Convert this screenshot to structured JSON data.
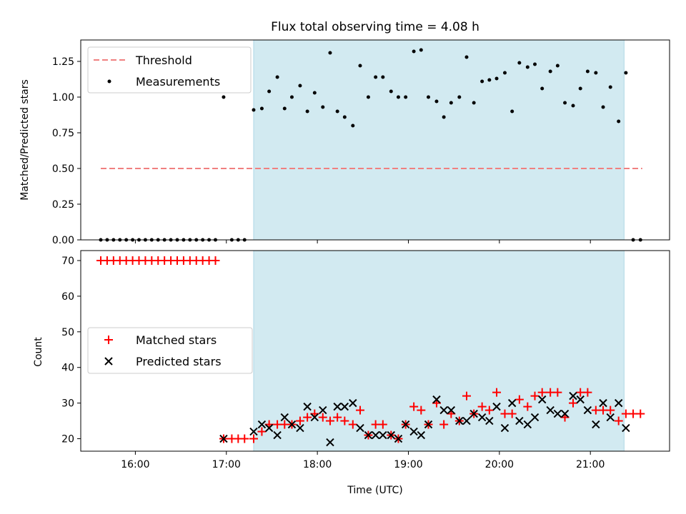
{
  "title": "Flux total observing time = 4.08 h",
  "colors": {
    "threshold": "#f08080",
    "measurement": "#000000",
    "matched": "#ff0000",
    "predicted": "#000000",
    "span": "#add8e6"
  },
  "chart_data": [
    {
      "type": "scatter",
      "ylabel": "Matched/Predicted stars",
      "ylim": [
        0,
        1.4
      ],
      "yticks": [
        "0.00",
        "0.25",
        "0.50",
        "0.75",
        "1.00",
        "1.25"
      ],
      "xlim": [
        15.4,
        21.87
      ],
      "highlight_span": [
        17.3,
        21.37
      ],
      "legend": {
        "position": "top-left",
        "entries": [
          "Threshold",
          "Measurements"
        ]
      },
      "series": [
        {
          "name": "Threshold",
          "style": "dashed-line",
          "x": [
            15.62,
            21.57
          ],
          "y": [
            0.5,
            0.5
          ]
        },
        {
          "name": "Measurements",
          "style": "dots",
          "x": [
            15.62,
            15.69,
            15.76,
            15.83,
            15.9,
            15.97,
            16.04,
            16.11,
            16.18,
            16.25,
            16.32,
            16.39,
            16.46,
            16.53,
            16.6,
            16.67,
            16.74,
            16.81,
            16.88,
            16.97,
            17.06,
            17.13,
            17.2,
            17.3,
            17.39,
            17.47,
            17.56,
            17.64,
            17.72,
            17.81,
            17.89,
            17.97,
            18.06,
            18.14,
            18.22,
            18.3,
            18.39,
            18.47,
            18.56,
            18.64,
            18.72,
            18.81,
            18.89,
            18.97,
            19.06,
            19.14,
            19.22,
            19.31,
            19.39,
            19.47,
            19.56,
            19.64,
            19.72,
            19.81,
            19.89,
            19.97,
            20.06,
            20.14,
            20.22,
            20.31,
            20.39,
            20.47,
            20.56,
            20.64,
            20.72,
            20.81,
            20.89,
            20.97,
            21.06,
            21.14,
            21.22,
            21.31,
            21.39,
            21.47,
            21.55
          ],
          "y": [
            0,
            0,
            0,
            0,
            0,
            0,
            0,
            0,
            0,
            0,
            0,
            0,
            0,
            0,
            0,
            0,
            0,
            0,
            0,
            1.0,
            0,
            0,
            0,
            0.91,
            0.92,
            1.04,
            1.14,
            0.92,
            1.0,
            1.08,
            0.9,
            1.03,
            0.93,
            1.31,
            0.9,
            0.86,
            0.8,
            1.22,
            1.0,
            1.14,
            1.14,
            1.04,
            1.0,
            1.0,
            1.32,
            1.33,
            1.0,
            0.97,
            0.86,
            0.96,
            1.0,
            1.28,
            0.96,
            1.11,
            1.12,
            1.13,
            1.17,
            0.9,
            1.24,
            1.21,
            1.23,
            1.06,
            1.18,
            1.22,
            0.96,
            0.94,
            1.06,
            1.18,
            1.17,
            0.93,
            1.07,
            0.83,
            1.17,
            0,
            0
          ]
        }
      ]
    },
    {
      "type": "scatter",
      "xlabel": "Time (UTC)",
      "ylabel": "Count",
      "ylim": [
        16.5,
        72.8
      ],
      "yticks": [
        "20",
        "30",
        "40",
        "50",
        "60",
        "70"
      ],
      "xlim": [
        15.4,
        21.87
      ],
      "xticks": [
        "16:00",
        "17:00",
        "18:00",
        "19:00",
        "20:00",
        "21:00"
      ],
      "highlight_span": [
        17.3,
        21.37
      ],
      "legend": {
        "position": "center-left",
        "entries": [
          "Matched stars",
          "Predicted stars"
        ]
      },
      "series": [
        {
          "name": "Matched stars",
          "marker": "+",
          "x": [
            15.62,
            15.69,
            15.76,
            15.83,
            15.9,
            15.97,
            16.04,
            16.11,
            16.18,
            16.25,
            16.32,
            16.39,
            16.46,
            16.53,
            16.6,
            16.67,
            16.74,
            16.81,
            16.88,
            16.97,
            17.06,
            17.13,
            17.2,
            17.3,
            17.39,
            17.47,
            17.56,
            17.64,
            17.72,
            17.81,
            17.89,
            17.97,
            18.06,
            18.14,
            18.22,
            18.3,
            18.39,
            18.47,
            18.56,
            18.64,
            18.72,
            18.81,
            18.89,
            18.97,
            19.06,
            19.14,
            19.22,
            19.31,
            19.39,
            19.47,
            19.56,
            19.64,
            19.72,
            19.81,
            19.89,
            19.97,
            20.06,
            20.14,
            20.22,
            20.31,
            20.39,
            20.47,
            20.56,
            20.64,
            20.72,
            20.81,
            20.89,
            20.97,
            21.06,
            21.14,
            21.22,
            21.31,
            21.39,
            21.47,
            21.55
          ],
          "y": [
            70,
            70,
            70,
            70,
            70,
            70,
            70,
            70,
            70,
            70,
            70,
            70,
            70,
            70,
            70,
            70,
            70,
            70,
            70,
            20,
            20,
            20,
            20,
            20,
            22,
            24,
            24,
            24,
            24,
            25,
            26,
            27,
            26,
            25,
            26,
            25,
            24,
            28,
            21,
            24,
            24,
            21,
            20,
            24,
            29,
            28,
            24,
            30,
            24,
            27,
            25,
            32,
            27,
            29,
            28,
            33,
            27,
            27,
            31,
            29,
            32,
            33,
            33,
            33,
            26,
            30,
            33,
            33,
            28,
            28,
            28,
            25,
            27,
            27,
            27
          ]
        },
        {
          "name": "Predicted stars",
          "marker": "x",
          "x": [
            16.97,
            17.3,
            17.39,
            17.47,
            17.56,
            17.64,
            17.72,
            17.81,
            17.89,
            17.97,
            18.06,
            18.14,
            18.22,
            18.3,
            18.39,
            18.47,
            18.56,
            18.64,
            18.72,
            18.81,
            18.89,
            18.97,
            19.06,
            19.14,
            19.22,
            19.31,
            19.39,
            19.47,
            19.56,
            19.64,
            19.72,
            19.81,
            19.89,
            19.97,
            20.06,
            20.14,
            20.22,
            20.31,
            20.39,
            20.47,
            20.56,
            20.64,
            20.72,
            20.81,
            20.89,
            20.97,
            21.06,
            21.14,
            21.22,
            21.31,
            21.39
          ],
          "y": [
            20,
            22,
            24,
            23,
            21,
            26,
            24,
            23,
            29,
            26,
            28,
            19,
            29,
            29,
            30,
            23,
            21,
            21,
            21,
            21,
            20,
            24,
            22,
            21,
            24,
            31,
            28,
            28,
            25,
            25,
            27,
            26,
            25,
            29,
            23,
            30,
            25,
            24,
            26,
            31,
            28,
            27,
            27,
            32,
            31,
            28,
            24,
            30,
            26,
            30,
            23
          ]
        }
      ]
    }
  ]
}
